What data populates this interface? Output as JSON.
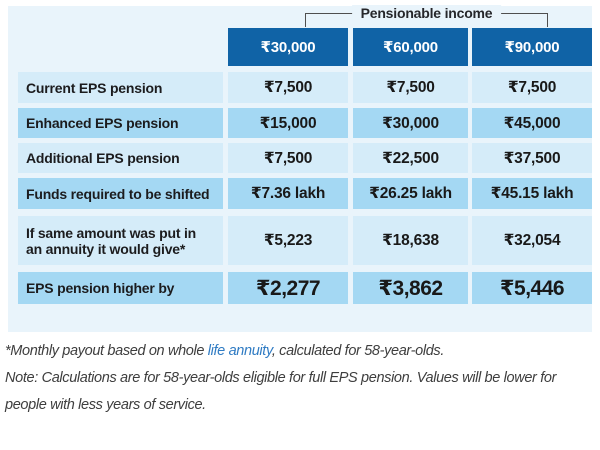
{
  "colors": {
    "header_bg": "#1063a6",
    "row_light": "#d5ecf9",
    "row_medium": "#a4d8f3",
    "table_bg": "#e9f4fb",
    "link": "#2f7bc3"
  },
  "table": {
    "group_header": "Pensionable income",
    "columns": [
      "₹30,000",
      "₹60,000",
      "₹90,000"
    ],
    "rows": [
      {
        "label": "Current EPS pension",
        "values": [
          "₹7,500",
          "₹7,500",
          "₹7,500"
        ]
      },
      {
        "label": "Enhanced EPS pension",
        "values": [
          "₹15,000",
          "₹30,000",
          "₹45,000"
        ]
      },
      {
        "label": "Additional EPS pension",
        "values": [
          "₹7,500",
          "₹22,500",
          "₹37,500"
        ]
      },
      {
        "label": "Funds required to be shifted",
        "values": [
          "₹7.36 lakh",
          "₹26.25 lakh",
          "₹45.15 lakh"
        ]
      },
      {
        "label": "If same amount was put in an annuity it would give*",
        "values": [
          "₹5,223",
          "₹18,638",
          "₹32,054"
        ]
      },
      {
        "label": "EPS pension higher by",
        "values": [
          "₹2,277",
          "₹3,862",
          "₹5,446"
        ]
      }
    ]
  },
  "footnotes": {
    "asterisk_prefix": "*Monthly payout based on whole ",
    "link_text": "life annuity",
    "asterisk_suffix": ", calculated for 58-year-olds.",
    "note": "Note: Calculations are for 58-year-olds eligible for full EPS pension. Values will be lower for people with less years of service."
  },
  "chart_data": {
    "type": "table",
    "title": "Pensionable income",
    "categories": [
      "₹30,000",
      "₹60,000",
      "₹90,000"
    ],
    "series": [
      {
        "name": "Current EPS pension",
        "values": [
          7500,
          7500,
          7500
        ]
      },
      {
        "name": "Enhanced EPS pension",
        "values": [
          15000,
          30000,
          45000
        ]
      },
      {
        "name": "Additional EPS pension",
        "values": [
          7500,
          22500,
          37500
        ]
      },
      {
        "name": "Funds required to be shifted (₹ lakh)",
        "values": [
          7.36,
          26.25,
          45.15
        ]
      },
      {
        "name": "If same amount was put in an annuity it would give*",
        "values": [
          5223,
          18638,
          32054
        ]
      },
      {
        "name": "EPS pension higher by",
        "values": [
          2277,
          3862,
          5446
        ]
      }
    ]
  }
}
